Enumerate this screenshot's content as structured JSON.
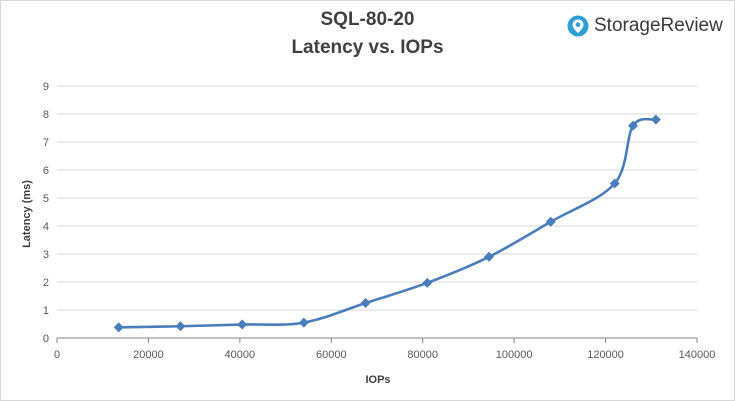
{
  "chart_data": {
    "type": "line",
    "title": "SQL-80-20",
    "subtitle": "Latency vs. IOPs",
    "xlabel": "IOPs",
    "ylabel": "Latency (ms)",
    "xlim": [
      0,
      140000
    ],
    "ylim": [
      0,
      9
    ],
    "x_ticks": [
      0,
      20000,
      40000,
      60000,
      80000,
      100000,
      120000,
      140000
    ],
    "y_ticks": [
      0,
      1,
      2,
      3,
      4,
      5,
      6,
      7,
      8,
      9
    ],
    "grid": "horizontal",
    "legend": "none",
    "series": [
      {
        "color": "#4a7ebb",
        "marker": "diamond",
        "smooth": true,
        "points": [
          [
            13500,
            0.38
          ],
          [
            27000,
            0.42
          ],
          [
            40500,
            0.48
          ],
          [
            54000,
            0.55
          ],
          [
            67500,
            1.25
          ],
          [
            81000,
            1.97
          ],
          [
            94500,
            2.9
          ],
          [
            108000,
            4.15
          ],
          [
            122000,
            5.52
          ],
          [
            126000,
            7.58
          ],
          [
            131000,
            7.8
          ]
        ]
      }
    ]
  },
  "brand": {
    "name": "StorageReview",
    "icon": "storagereview-logo-icon",
    "color": "#2f9fd8"
  }
}
